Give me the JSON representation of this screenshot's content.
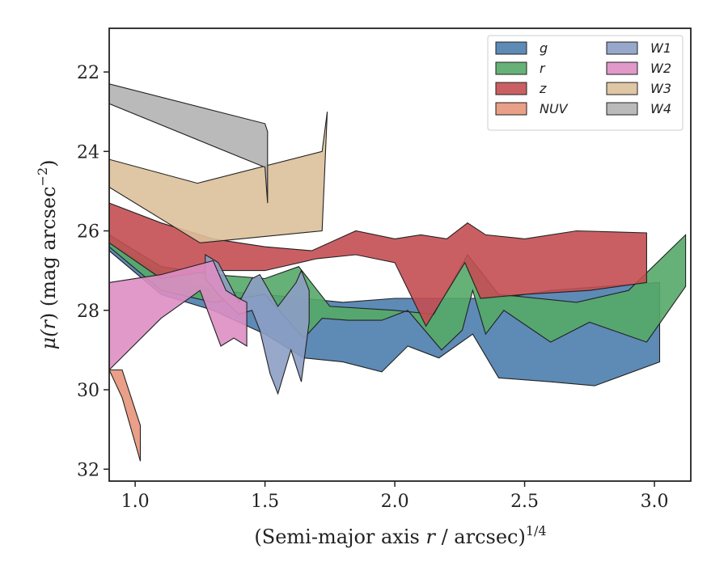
{
  "chart_data": {
    "type": "area",
    "title": "",
    "xlabel": "(Semi-major axis r / arcsec)",
    "xlabel_var": "r",
    "xlabel_parts": [
      "(Semi-major axis ",
      " / arcsec)"
    ],
    "xlabel_sup": "1/4",
    "ylabel": "μ(r) (mag arcsec",
    "ylabel_parts": [
      "μ(",
      ") (mag arcsec"
    ],
    "ylabel_var": "r",
    "ylabel_sup": "−2",
    "ylabel_close": ")",
    "xlim": [
      0.9,
      3.14
    ],
    "ylim": [
      32.3,
      20.9
    ],
    "y_inverted": true,
    "xticks": [
      1.0,
      1.5,
      2.0,
      2.5,
      3.0
    ],
    "xtick_labels": [
      "1.0",
      "1.5",
      "2.0",
      "2.5",
      "3.0"
    ],
    "yticks": [
      22,
      24,
      26,
      28,
      30,
      32
    ],
    "ytick_labels": [
      "22",
      "24",
      "26",
      "28",
      "30",
      "32"
    ],
    "grid": false,
    "legend_position": "top-right",
    "legend_columns": 2,
    "series": [
      {
        "name": "g",
        "color": "#4c7dae",
        "upper": [
          [
            0.9,
            26.3
          ],
          [
            1.1,
            27.0
          ],
          [
            1.3,
            27.5
          ],
          [
            1.5,
            27.6
          ],
          [
            1.65,
            27.7
          ],
          [
            1.8,
            27.8
          ],
          [
            2.0,
            27.7
          ],
          [
            2.2,
            27.7
          ],
          [
            2.4,
            27.7
          ],
          [
            2.6,
            27.5
          ],
          [
            2.8,
            27.4
          ],
          [
            3.02,
            27.3
          ]
        ],
        "lower": [
          [
            0.9,
            26.5
          ],
          [
            1.1,
            27.6
          ],
          [
            1.3,
            28.0
          ],
          [
            1.5,
            28.6
          ],
          [
            1.65,
            29.2
          ],
          [
            1.8,
            29.3
          ],
          [
            1.95,
            29.55
          ],
          [
            2.05,
            28.9
          ],
          [
            2.17,
            29.2
          ],
          [
            2.3,
            28.6
          ],
          [
            2.4,
            29.7
          ],
          [
            2.6,
            29.8
          ],
          [
            2.77,
            29.9
          ],
          [
            3.02,
            29.3
          ]
        ]
      },
      {
        "name": "r",
        "color": "#55a868",
        "upper": [
          [
            0.9,
            26.1
          ],
          [
            1.1,
            26.9
          ],
          [
            1.3,
            27.1
          ],
          [
            1.5,
            27.2
          ],
          [
            1.63,
            26.9
          ],
          [
            1.75,
            27.9
          ],
          [
            2.0,
            28.0
          ],
          [
            2.15,
            28.1
          ],
          [
            2.28,
            26.6
          ],
          [
            2.4,
            27.6
          ],
          [
            2.7,
            27.8
          ],
          [
            2.9,
            27.5
          ],
          [
            3.12,
            26.1
          ]
        ],
        "lower": [
          [
            0.9,
            26.4
          ],
          [
            1.1,
            27.5
          ],
          [
            1.3,
            27.8
          ],
          [
            1.5,
            27.6
          ],
          [
            1.65,
            28.7
          ],
          [
            1.72,
            28.2
          ],
          [
            1.82,
            28.25
          ],
          [
            1.95,
            28.25
          ],
          [
            2.05,
            28.0
          ],
          [
            2.18,
            29.0
          ],
          [
            2.26,
            28.5
          ],
          [
            2.3,
            27.5
          ],
          [
            2.35,
            28.6
          ],
          [
            2.42,
            28.0
          ],
          [
            2.6,
            28.8
          ],
          [
            2.75,
            28.3
          ],
          [
            2.97,
            28.8
          ],
          [
            3.12,
            27.4
          ]
        ]
      },
      {
        "name": "z",
        "color": "#c44e52",
        "upper": [
          [
            0.9,
            25.3
          ],
          [
            1.1,
            25.8
          ],
          [
            1.3,
            26.2
          ],
          [
            1.5,
            26.4
          ],
          [
            1.68,
            26.5
          ],
          [
            1.85,
            26.0
          ],
          [
            2.0,
            26.2
          ],
          [
            2.1,
            26.1
          ],
          [
            2.2,
            26.2
          ],
          [
            2.28,
            25.8
          ],
          [
            2.35,
            26.1
          ],
          [
            2.5,
            26.2
          ],
          [
            2.7,
            26.0
          ],
          [
            2.97,
            26.05
          ]
        ],
        "lower": [
          [
            0.9,
            26.3
          ],
          [
            1.1,
            27.2
          ],
          [
            1.3,
            27.0
          ],
          [
            1.5,
            27.0
          ],
          [
            1.7,
            26.7
          ],
          [
            1.85,
            26.6
          ],
          [
            2.0,
            26.8
          ],
          [
            2.12,
            28.4
          ],
          [
            2.27,
            26.8
          ],
          [
            2.33,
            27.7
          ],
          [
            2.5,
            27.6
          ],
          [
            2.75,
            27.5
          ],
          [
            2.97,
            27.3
          ]
        ]
      },
      {
        "name": "NUV",
        "color": "#e8957b",
        "upper": [
          [
            0.9,
            29.5
          ],
          [
            0.95,
            29.5
          ],
          [
            1.02,
            30.9
          ]
        ],
        "lower": [
          [
            0.9,
            29.5
          ],
          [
            0.95,
            30.2
          ],
          [
            1.02,
            31.8
          ]
        ]
      },
      {
        "name": "W1",
        "color": "#8d9fc4",
        "upper": [
          [
            1.27,
            26.6
          ],
          [
            1.32,
            26.8
          ],
          [
            1.4,
            27.8
          ],
          [
            1.45,
            27.2
          ],
          [
            1.48,
            27.1
          ],
          [
            1.55,
            27.9
          ],
          [
            1.62,
            27.3
          ],
          [
            1.64,
            27.0
          ],
          [
            1.67,
            27.5
          ]
        ],
        "lower": [
          [
            1.27,
            27.2
          ],
          [
            1.32,
            27.6
          ],
          [
            1.4,
            28.1
          ],
          [
            1.45,
            28.0
          ],
          [
            1.48,
            28.5
          ],
          [
            1.52,
            29.6
          ],
          [
            1.55,
            30.1
          ],
          [
            1.6,
            29.0
          ],
          [
            1.64,
            29.8
          ],
          [
            1.67,
            28.3
          ]
        ]
      },
      {
        "name": "W2",
        "color": "#dd8ec3",
        "upper": [
          [
            0.9,
            27.3
          ],
          [
            1.1,
            27.1
          ],
          [
            1.3,
            26.75
          ],
          [
            1.35,
            27.5
          ],
          [
            1.4,
            27.7
          ],
          [
            1.43,
            27.8
          ]
        ],
        "lower": [
          [
            0.9,
            29.5
          ],
          [
            1.1,
            28.2
          ],
          [
            1.25,
            27.5
          ],
          [
            1.33,
            28.9
          ],
          [
            1.38,
            28.7
          ],
          [
            1.43,
            28.9
          ]
        ]
      },
      {
        "name": "W3",
        "color": "#dbc09a",
        "upper": [
          [
            0.9,
            24.2
          ],
          [
            1.24,
            24.8
          ],
          [
            1.72,
            24.0
          ],
          [
            1.74,
            23.0
          ]
        ],
        "lower": [
          [
            0.9,
            24.9
          ],
          [
            1.1,
            25.7
          ],
          [
            1.25,
            26.3
          ],
          [
            1.72,
            26.0
          ]
        ]
      },
      {
        "name": "W4",
        "color": "#b3b3b3",
        "upper": [
          [
            0.9,
            22.3
          ],
          [
            1.5,
            23.3
          ],
          [
            1.51,
            23.5
          ]
        ],
        "lower": [
          [
            0.9,
            22.8
          ],
          [
            1.5,
            24.4
          ],
          [
            1.51,
            25.3
          ]
        ]
      }
    ]
  }
}
